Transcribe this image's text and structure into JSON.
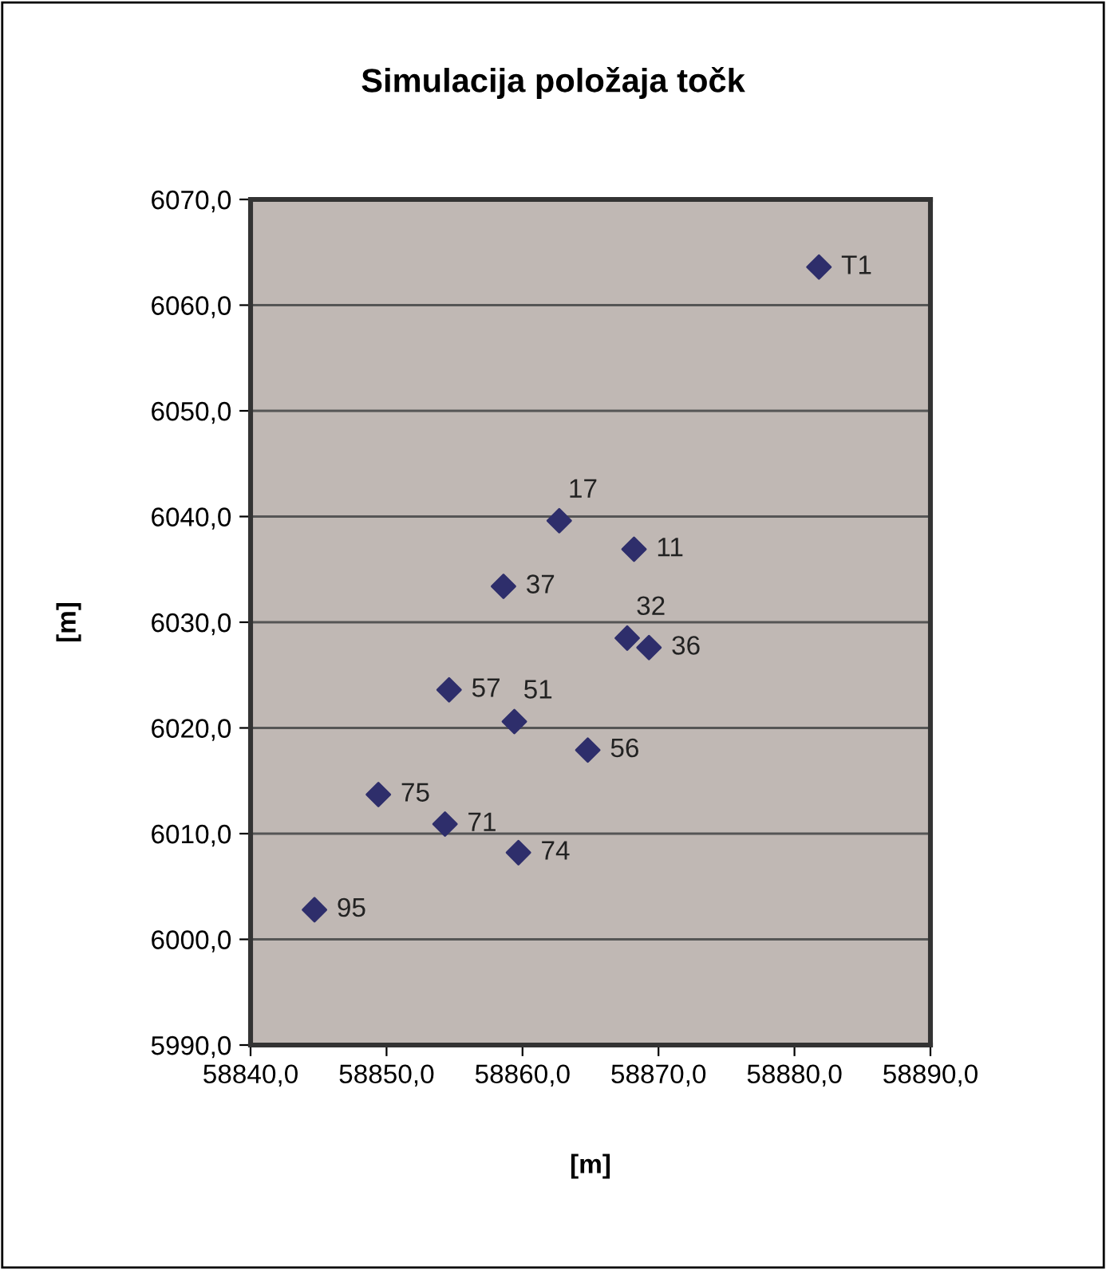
{
  "chart_data": {
    "type": "scatter",
    "title": "Simulacija položaja točk",
    "xlabel": "[m]",
    "ylabel": "[m]",
    "x": [
      58881.8,
      58862.7,
      58868.2,
      58858.6,
      58867.7,
      58869.3,
      58854.6,
      58859.4,
      58864.8,
      58849.4,
      58854.3,
      58859.7,
      58844.7
    ],
    "series": [
      {
        "color": "#2e2e6b",
        "values": [
          6063.6,
          6039.6,
          6036.9,
          6033.4,
          6028.5,
          6027.6,
          6023.6,
          6020.6,
          6017.9,
          6013.7,
          6010.9,
          6008.2,
          6002.8
        ]
      }
    ],
    "marker": "diamond",
    "annotations": [
      {
        "text": "T1",
        "x": 58881.8,
        "y": 6063.6
      },
      {
        "text": "17",
        "x": 58862.7,
        "y": 6039.6
      },
      {
        "text": "11",
        "x": 58868.2,
        "y": 6036.9
      },
      {
        "text": "37",
        "x": 58858.6,
        "y": 6033.4
      },
      {
        "text": "32",
        "x": 58867.7,
        "y": 6028.5
      },
      {
        "text": "36",
        "x": 58869.3,
        "y": 6027.6
      },
      {
        "text": "57",
        "x": 58854.6,
        "y": 6023.6
      },
      {
        "text": "51",
        "x": 58859.4,
        "y": 6020.6
      },
      {
        "text": "56",
        "x": 58864.8,
        "y": 6017.9
      },
      {
        "text": "75",
        "x": 58849.4,
        "y": 6013.7
      },
      {
        "text": "71",
        "x": 58854.3,
        "y": 6010.9
      },
      {
        "text": "74",
        "x": 58859.7,
        "y": 6008.2
      },
      {
        "text": "95",
        "x": 58844.7,
        "y": 6002.8
      }
    ],
    "xlim": [
      58840,
      58890
    ],
    "ylim": [
      5990,
      6070
    ],
    "xticks": [
      {
        "value": 58840,
        "label": "58840,0"
      },
      {
        "value": 58850,
        "label": "58850,0"
      },
      {
        "value": 58860,
        "label": "58860,0"
      },
      {
        "value": 58870,
        "label": "58870,0"
      },
      {
        "value": 58880,
        "label": "58880,0"
      },
      {
        "value": 58890,
        "label": "58890,0"
      }
    ],
    "yticks": [
      {
        "value": 5990,
        "label": "5990,0"
      },
      {
        "value": 6000,
        "label": "6000,0"
      },
      {
        "value": 6010,
        "label": "6010,0"
      },
      {
        "value": 6020,
        "label": "6020,0"
      },
      {
        "value": 6030,
        "label": "6030,0"
      },
      {
        "value": 6040,
        "label": "6040,0"
      },
      {
        "value": 6050,
        "label": "6050,0"
      },
      {
        "value": 6060,
        "label": "6060,0"
      },
      {
        "value": 6070,
        "label": "6070,0"
      }
    ],
    "grid": "y"
  }
}
